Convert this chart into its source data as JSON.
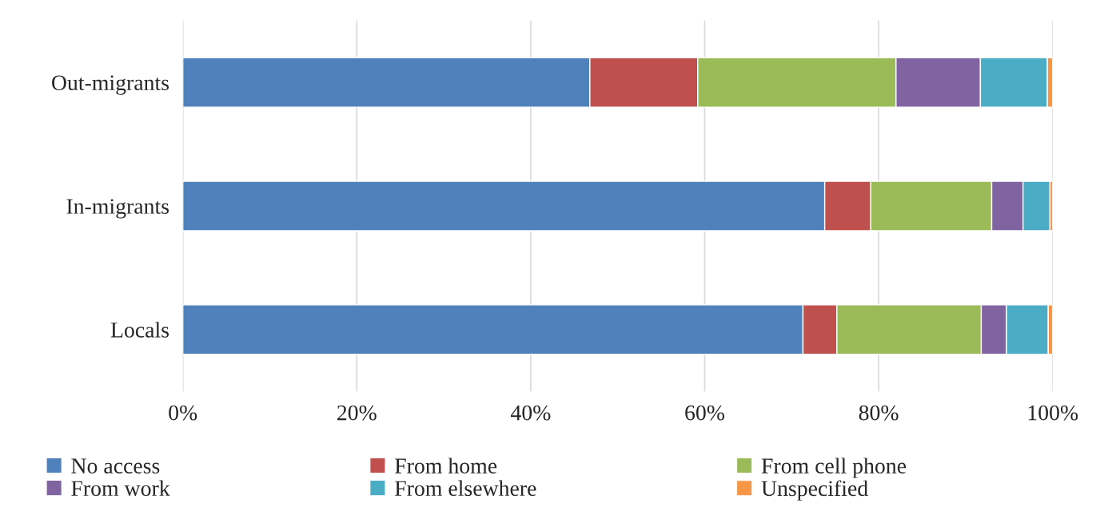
{
  "chart_data": {
    "type": "bar",
    "orientation": "horizontal",
    "stacked": true,
    "categories": [
      "Out-migrants",
      "In-migrants",
      "Locals"
    ],
    "series": [
      {
        "name": "No access",
        "color": "#4f81bd",
        "values": [
          46.8,
          73.8,
          71.3
        ]
      },
      {
        "name": "From home",
        "color": "#c0504d",
        "values": [
          12.4,
          5.3,
          3.9
        ]
      },
      {
        "name": "From cell phone",
        "color": "#9bbb59",
        "values": [
          22.8,
          13.9,
          16.6
        ]
      },
      {
        "name": "From work",
        "color": "#8064a2",
        "values": [
          9.7,
          3.6,
          2.9
        ]
      },
      {
        "name": "From elsewhere",
        "color": "#4bacc6",
        "values": [
          7.7,
          3.1,
          4.8
        ]
      },
      {
        "name": "Unspecified",
        "color": "#f79646",
        "values": [
          0.6,
          0.3,
          0.5
        ]
      }
    ],
    "xlim": [
      0,
      100
    ],
    "xticks": [
      {
        "value": 0,
        "label": "0%"
      },
      {
        "value": 20,
        "label": "20%"
      },
      {
        "value": 40,
        "label": "40%"
      },
      {
        "value": 60,
        "label": "60%"
      },
      {
        "value": 80,
        "label": "80%"
      },
      {
        "value": 100,
        "label": "100%"
      }
    ],
    "grid": "x",
    "legend": "bottom"
  }
}
